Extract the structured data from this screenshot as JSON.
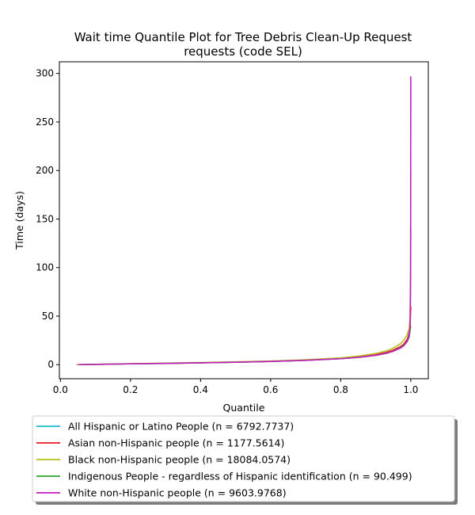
{
  "chart_data": {
    "type": "line",
    "title": "Wait time Quantile Plot for Tree Debris Clean-Up Request",
    "subtitle": "requests (code SEL)",
    "xlabel": "Quantile",
    "ylabel": "Time (days)",
    "xlim": [
      -0.003,
      1.05
    ],
    "ylim": [
      -14.5,
      312
    ],
    "xticks": [
      0.0,
      0.2,
      0.4,
      0.6,
      0.8,
      1.0
    ],
    "xtick_labels": [
      "0.0",
      "0.2",
      "0.4",
      "0.6",
      "0.8",
      "1.0"
    ],
    "yticks": [
      0,
      50,
      100,
      150,
      200,
      250,
      300
    ],
    "ytick_labels": [
      "0",
      "50",
      "100",
      "150",
      "200",
      "250",
      "300"
    ],
    "grid": false,
    "legend_position": "below",
    "series": [
      {
        "name": "All Hispanic or Latino People (n = 6792.7737)",
        "color": "#17becf",
        "points": [
          [
            0.05,
            0
          ],
          [
            0.1,
            0.3
          ],
          [
            0.2,
            0.9
          ],
          [
            0.3,
            1.4
          ],
          [
            0.4,
            2.0
          ],
          [
            0.5,
            2.6
          ],
          [
            0.6,
            3.4
          ],
          [
            0.7,
            4.5
          ],
          [
            0.8,
            6.3
          ],
          [
            0.85,
            7.8
          ],
          [
            0.9,
            10.0
          ],
          [
            0.93,
            12.3
          ],
          [
            0.95,
            14.8
          ],
          [
            0.97,
            18.3
          ],
          [
            0.98,
            21
          ],
          [
            0.99,
            26
          ],
          [
            0.995,
            32
          ],
          [
            0.998,
            40
          ],
          [
            0.9995,
            80
          ],
          [
            1.0,
            140
          ]
        ]
      },
      {
        "name": "Asian non-Hispanic people (n = 1177.5614)",
        "color": "#e8141c",
        "points": [
          [
            0.05,
            0
          ],
          [
            0.1,
            0.3
          ],
          [
            0.2,
            0.9
          ],
          [
            0.3,
            1.4
          ],
          [
            0.4,
            2.0
          ],
          [
            0.5,
            2.6
          ],
          [
            0.6,
            3.4
          ],
          [
            0.7,
            4.6
          ],
          [
            0.8,
            6.5
          ],
          [
            0.85,
            8.0
          ],
          [
            0.9,
            10.3
          ],
          [
            0.93,
            12.6
          ],
          [
            0.95,
            15.0
          ],
          [
            0.97,
            18.5
          ],
          [
            0.98,
            21
          ],
          [
            0.99,
            26
          ],
          [
            0.995,
            31
          ],
          [
            0.998,
            38
          ],
          [
            1.0,
            60
          ]
        ]
      },
      {
        "name": "Black non-Hispanic people (n = 18084.0574)",
        "color": "#bcbd22",
        "points": [
          [
            0.045,
            0
          ],
          [
            0.1,
            0.4
          ],
          [
            0.2,
            1.0
          ],
          [
            0.3,
            1.6
          ],
          [
            0.4,
            2.2
          ],
          [
            0.5,
            2.9
          ],
          [
            0.6,
            3.7
          ],
          [
            0.7,
            5.0
          ],
          [
            0.8,
            7.0
          ],
          [
            0.85,
            8.8
          ],
          [
            0.9,
            11.5
          ],
          [
            0.93,
            14.2
          ],
          [
            0.95,
            17.0
          ],
          [
            0.97,
            21.5
          ],
          [
            0.98,
            25
          ],
          [
            0.99,
            31
          ],
          [
            0.995,
            37
          ],
          [
            0.998,
            48
          ],
          [
            0.9995,
            100
          ],
          [
            1.0,
            200
          ]
        ]
      },
      {
        "name": "Indigenous People - regardless of Hispanic identification (n = 90.499)",
        "color": "#2ca02c",
        "points": [
          [
            0.05,
            0
          ],
          [
            0.1,
            0.3
          ],
          [
            0.2,
            0.8
          ],
          [
            0.3,
            1.3
          ],
          [
            0.4,
            1.9
          ],
          [
            0.5,
            2.5
          ],
          [
            0.6,
            3.3
          ],
          [
            0.7,
            4.4
          ],
          [
            0.8,
            6.1
          ],
          [
            0.85,
            7.5
          ],
          [
            0.9,
            9.6
          ],
          [
            0.93,
            11.8
          ],
          [
            0.95,
            14.0
          ],
          [
            0.97,
            17.5
          ],
          [
            0.98,
            20
          ],
          [
            0.99,
            24
          ],
          [
            0.995,
            28
          ],
          [
            1.0,
            40
          ]
        ]
      },
      {
        "name": "White non-Hispanic people (n = 9603.9768)",
        "color": "#c41dc0",
        "points": [
          [
            0.05,
            0
          ],
          [
            0.1,
            0.3
          ],
          [
            0.2,
            0.8
          ],
          [
            0.3,
            1.3
          ],
          [
            0.4,
            1.9
          ],
          [
            0.5,
            2.5
          ],
          [
            0.6,
            3.3
          ],
          [
            0.7,
            4.4
          ],
          [
            0.8,
            6.1
          ],
          [
            0.85,
            7.5
          ],
          [
            0.9,
            9.6
          ],
          [
            0.93,
            11.6
          ],
          [
            0.95,
            13.8
          ],
          [
            0.97,
            17.0
          ],
          [
            0.98,
            19.5
          ],
          [
            0.99,
            24
          ],
          [
            0.995,
            30
          ],
          [
            0.998,
            38
          ],
          [
            0.9995,
            90
          ],
          [
            1.0,
            297
          ]
        ]
      }
    ]
  }
}
